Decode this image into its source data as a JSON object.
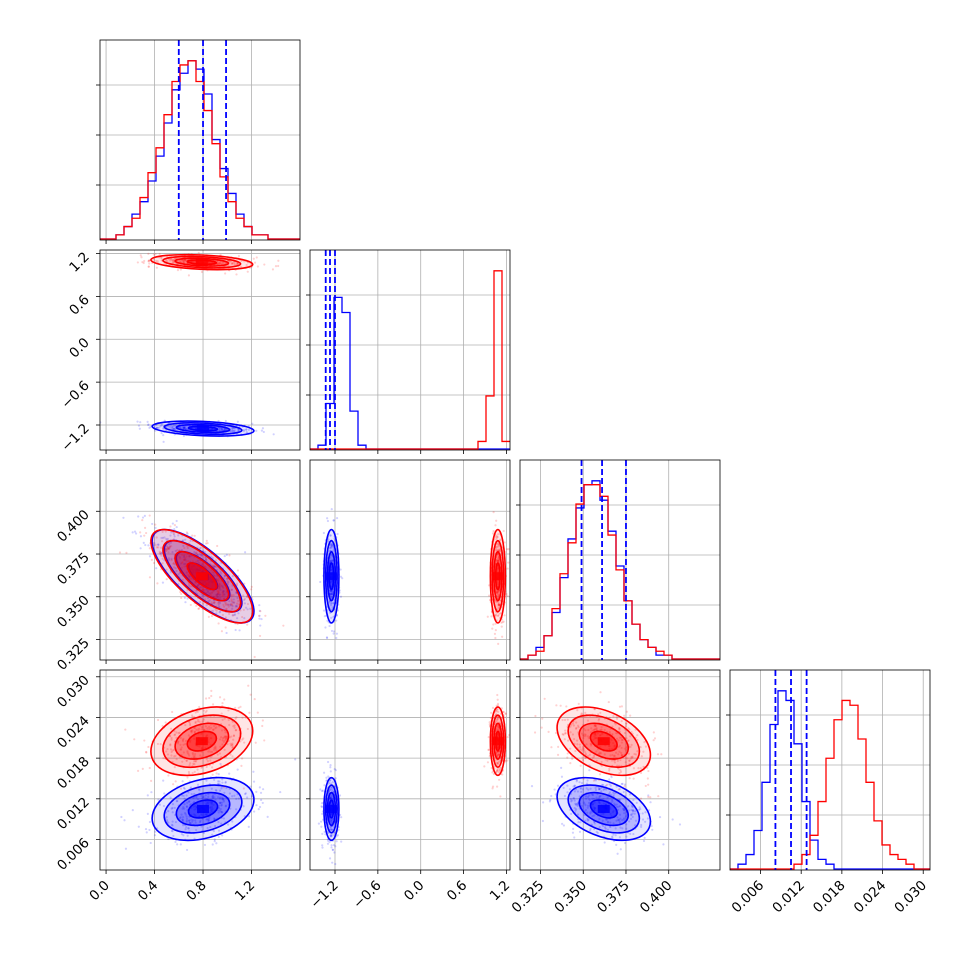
{
  "chart_data": {
    "type": "corner",
    "series": [
      {
        "name": "",
        "color": "#0000ff",
        "mean": [
          0.8,
          -1.25,
          0.362,
          0.0105
        ],
        "std": [
          0.2,
          0.05,
          0.013,
          0.0022
        ],
        "quantile_lines": true
      },
      {
        "name": "",
        "color": "#ff0000",
        "mean": [
          0.79,
          1.08,
          0.362,
          0.0205
        ],
        "std": [
          0.2,
          0.05,
          0.013,
          0.0024
        ],
        "quantile_lines": false
      }
    ],
    "correlations": {
      "p0_p1": -0.3,
      "p0_p2": -0.75,
      "p0_p3": 0.3,
      "p1_p2": 0.0,
      "p1_p3": 0.0,
      "p2_p3": -0.4
    },
    "quantiles": {
      "p0": [
        0.6,
        0.8,
        0.99
      ],
      "p1": [
        -1.33,
        -1.27,
        -1.2
      ],
      "p2": [
        0.349,
        0.361,
        0.375
      ],
      "p3": [
        0.0082,
        0.0105,
        0.0128
      ]
    },
    "axes": [
      {
        "range": [
          -0.05,
          1.6
        ],
        "ticks": [
          0.0,
          0.4,
          0.8,
          1.2
        ],
        "tick_labels": [
          "0.0",
          "0.4",
          "0.8",
          "1.2"
        ]
      },
      {
        "range": [
          -1.55,
          1.25
        ],
        "ticks": [
          -1.2,
          -0.6,
          0.0,
          0.6,
          1.2
        ],
        "tick_labels": [
          "−1.2",
          "−0.6",
          "0.0",
          "0.6",
          "1.2"
        ]
      },
      {
        "range": [
          0.313,
          0.43
        ],
        "ticks": [
          0.325,
          0.35,
          0.375,
          0.4
        ],
        "tick_labels": [
          "0.325",
          "0.350",
          "0.375",
          "0.400"
        ]
      },
      {
        "range": [
          0.0015,
          0.031
        ],
        "ticks": [
          0.006,
          0.012,
          0.018,
          0.024,
          0.03
        ],
        "tick_labels": [
          "0.006",
          "0.012",
          "0.018",
          "0.024",
          "0.030"
        ]
      }
    ],
    "histograms": {
      "p0": {
        "edges_start": -0.05,
        "bin_width": 0.066,
        "blue": [
          0,
          0,
          1,
          3,
          6,
          9,
          14,
          20,
          28,
          36,
          40,
          43,
          41,
          35,
          24,
          17,
          11,
          6,
          3,
          1,
          1,
          0,
          0,
          0,
          0
        ],
        "red": [
          0,
          0,
          1,
          3,
          5,
          10,
          16,
          22,
          30,
          38,
          42,
          43,
          38,
          31,
          23,
          15,
          9,
          5,
          3,
          1,
          1,
          0,
          0,
          0,
          0
        ]
      },
      "p1": {
        "edges_start": -1.55,
        "bin_width": 0.112,
        "blue": [
          0,
          1,
          12,
          40,
          36,
          10,
          1,
          0,
          0,
          0,
          0,
          0,
          0,
          0,
          0,
          0,
          0,
          0,
          0,
          0,
          0,
          0,
          0,
          0,
          0
        ],
        "red": [
          0,
          0,
          0,
          0,
          0,
          0,
          0,
          0,
          0,
          0,
          0,
          0,
          0,
          0,
          0,
          0,
          0,
          0,
          0,
          0,
          0,
          2,
          14,
          47,
          2
        ]
      },
      "p2": {
        "edges_start": 0.313,
        "bin_width": 0.00468,
        "blue": [
          0,
          1,
          3,
          6,
          12,
          21,
          31,
          39,
          45,
          46,
          41,
          33,
          24,
          15,
          9,
          5,
          3,
          1,
          1,
          0,
          0,
          0,
          0,
          0,
          0
        ],
        "red": [
          0,
          1,
          2,
          6,
          13,
          22,
          30,
          40,
          45,
          45,
          42,
          32,
          23,
          15,
          9,
          5,
          3,
          2,
          1,
          0,
          0,
          0,
          0,
          0,
          0
        ]
      },
      "p3": {
        "edges_start": 0.0015,
        "bin_width": 0.00118,
        "blue": [
          0,
          1,
          3,
          8,
          18,
          30,
          37,
          35,
          26,
          14,
          6,
          2,
          1,
          0,
          0,
          0,
          0,
          0,
          0,
          0,
          0,
          0,
          0,
          0,
          0
        ],
        "red": [
          0,
          0,
          0,
          0,
          0,
          0,
          0,
          0,
          1,
          3,
          7,
          14,
          23,
          31,
          35,
          34,
          27,
          18,
          10,
          5,
          3,
          2,
          1,
          0,
          0
        ]
      }
    }
  }
}
